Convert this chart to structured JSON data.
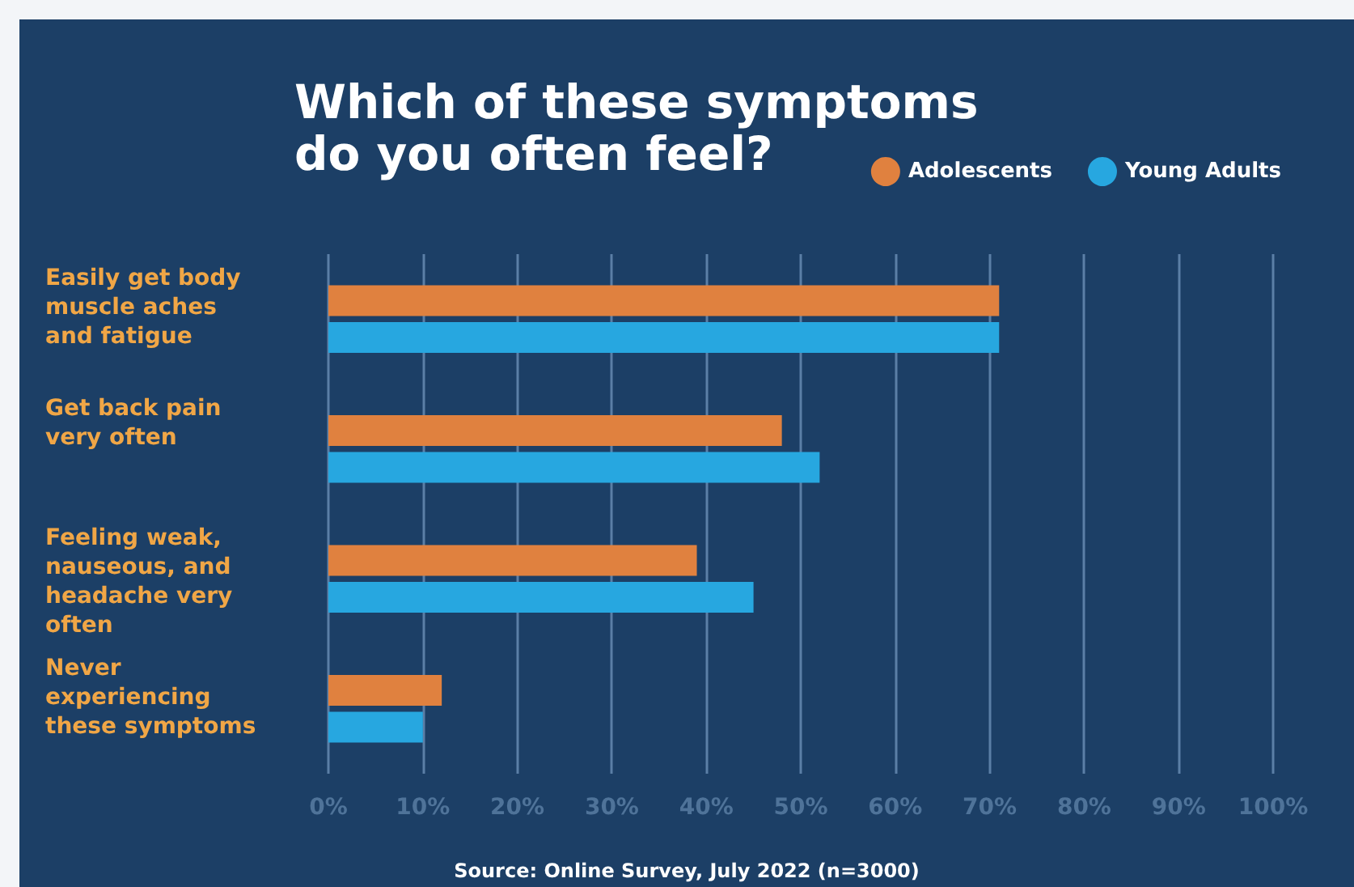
{
  "chart_data": {
    "type": "bar",
    "orientation": "horizontal",
    "title": "Which of these symptoms\ndo you often feel?",
    "categories": [
      "Easily get body\nmuscle aches\nand fatigue",
      "Get back pain\nvery often",
      "Feeling weak,\nnauseous, and\nheadache very\noften",
      "Never\nexperiencing\nthese symptoms"
    ],
    "series": [
      {
        "name": "Adolescents",
        "color": "#e0813f",
        "values": [
          71,
          48,
          39,
          12
        ]
      },
      {
        "name": "Young Adults",
        "color": "#27a7e0",
        "values": [
          71,
          52,
          45,
          10
        ]
      }
    ],
    "xlim": [
      0,
      100
    ],
    "xticks": [
      {
        "value": 0,
        "label": "0%"
      },
      {
        "value": 10,
        "label": "10%"
      },
      {
        "value": 20,
        "label": "20%"
      },
      {
        "value": 30,
        "label": "30%"
      },
      {
        "value": 40,
        "label": "40%"
      },
      {
        "value": 50,
        "label": "50%"
      },
      {
        "value": 60,
        "label": "60%"
      },
      {
        "value": 70,
        "label": "70%"
      },
      {
        "value": 80,
        "label": "80%"
      },
      {
        "value": 90,
        "label": "90%"
      },
      {
        "value": 100,
        "label": "100%"
      }
    ],
    "grid": "x",
    "legend": "top right",
    "annotations": [
      "Source: Online Survey, July 2022 (n=3000)"
    ]
  }
}
